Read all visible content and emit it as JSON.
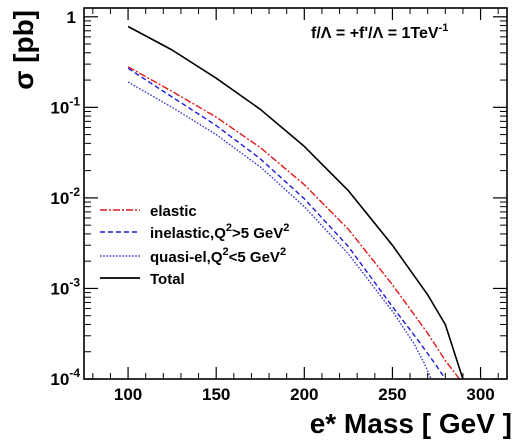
{
  "chart_data": {
    "type": "line",
    "annotation": {
      "prefix": "f/",
      "lambda": "Λ",
      "mid": " = +f'/",
      "suffix": " = 1TeV",
      "exp": "-1"
    },
    "xlabel": "e* Mass [ GeV ]",
    "ylabel": "σ [pb]",
    "xlim": [
      75,
      315
    ],
    "ylim": [
      0.0001,
      1.25
    ],
    "yscale": "log",
    "x_ticks": [
      100,
      150,
      200,
      250,
      300
    ],
    "x_tick_labels": [
      "100",
      "150",
      "200",
      "250",
      "300"
    ],
    "y_ticks": [
      {
        "value": 1,
        "base": "1",
        "exp": ""
      },
      {
        "value": 0.1,
        "base": "10",
        "exp": "-1"
      },
      {
        "value": 0.01,
        "base": "10",
        "exp": "-2"
      },
      {
        "value": 0.001,
        "base": "10",
        "exp": "-3"
      },
      {
        "value": 0.0001,
        "base": "10",
        "exp": "-4"
      }
    ],
    "grid": false,
    "legend_position": "lower-left",
    "series": [
      {
        "key": "elastic",
        "legend_parts": [
          "elastic"
        ],
        "color": "#e01818",
        "dash": "7,2,2,2",
        "x": [
          100,
          125,
          150,
          175,
          200,
          225,
          250,
          270,
          280,
          288
        ],
        "y": [
          0.28,
          0.15,
          0.078,
          0.036,
          0.014,
          0.0045,
          0.0011,
          0.00032,
          0.00016,
          0.0001
        ]
      },
      {
        "key": "inelastic",
        "legend_parts": [
          "inelastic,Q",
          "2",
          ">5 GeV",
          "2"
        ],
        "color": "#1a1ae0",
        "dash": "5,3",
        "x": [
          100,
          125,
          150,
          175,
          200,
          225,
          250,
          265,
          275,
          280
        ],
        "y": [
          0.27,
          0.13,
          0.063,
          0.027,
          0.0098,
          0.0029,
          0.00063,
          0.00026,
          0.00014,
          0.0001
        ]
      },
      {
        "key": "quasi-el",
        "legend_parts": [
          "quasi-el,Q",
          "2",
          "<5 GeV",
          "2"
        ],
        "color": "#3a3ad0",
        "dash": "1.6,1.6",
        "x": [
          100,
          125,
          150,
          175,
          200,
          225,
          250,
          262,
          268,
          272
        ],
        "y": [
          0.19,
          0.1,
          0.05,
          0.022,
          0.008,
          0.0024,
          0.00056,
          0.00025,
          0.00015,
          0.0001
        ]
      },
      {
        "key": "total",
        "legend_parts": [
          "Total"
        ],
        "color": "#000000",
        "dash": "",
        "x": [
          100,
          125,
          150,
          175,
          200,
          225,
          250,
          270,
          280,
          290
        ],
        "y": [
          0.78,
          0.43,
          0.21,
          0.095,
          0.037,
          0.012,
          0.003,
          0.00085,
          0.0004,
          0.0001
        ]
      }
    ]
  }
}
